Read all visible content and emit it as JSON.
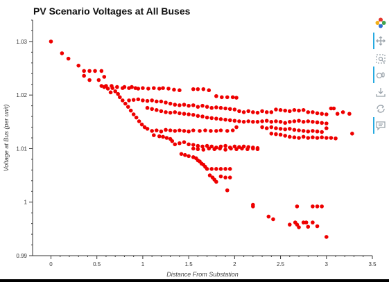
{
  "chart_data": {
    "type": "scatter",
    "title": "PV Scenario Voltages at All Buses",
    "xlabel": "Distance From Substation",
    "ylabel": "Voltage at Bus (per unit)",
    "xlim": [
      -0.2,
      3.5
    ],
    "ylim": [
      0.99,
      1.034
    ],
    "x_ticks": [
      "0",
      "0.5",
      "1",
      "1.5",
      "2",
      "2.5",
      "3",
      "3.5"
    ],
    "y_ticks": [
      "0.99",
      "1",
      "1.01",
      "1.02",
      "1.03"
    ],
    "marker_color": "#ee0000",
    "grid": false,
    "points": [
      [
        0.0,
        1.03
      ],
      [
        0.12,
        1.0278
      ],
      [
        0.19,
        1.0268
      ],
      [
        0.3,
        1.0255
      ],
      [
        0.36,
        1.0236
      ],
      [
        0.36,
        1.0245
      ],
      [
        0.42,
        1.0228
      ],
      [
        0.42,
        1.0245
      ],
      [
        0.48,
        1.0245
      ],
      [
        0.55,
        1.0245
      ],
      [
        0.58,
        1.0234
      ],
      [
        0.52,
        1.0228
      ],
      [
        0.55,
        1.0217
      ],
      [
        0.58,
        1.0215
      ],
      [
        0.62,
        1.0212
      ],
      [
        0.65,
        1.0205
      ],
      [
        0.67,
        1.0213
      ],
      [
        0.7,
        1.0207
      ],
      [
        0.73,
        1.0202
      ],
      [
        0.75,
        1.0196
      ],
      [
        0.78,
        1.019
      ],
      [
        0.81,
        1.0184
      ],
      [
        0.84,
        1.0178
      ],
      [
        0.87,
        1.0171
      ],
      [
        0.9,
        1.0164
      ],
      [
        0.93,
        1.0158
      ],
      [
        0.96,
        1.0151
      ],
      [
        0.99,
        1.0145
      ],
      [
        1.02,
        1.014
      ],
      [
        1.05,
        1.0137
      ],
      [
        0.6,
        1.0217
      ],
      [
        0.66,
        1.0217
      ],
      [
        0.72,
        1.0215
      ],
      [
        0.78,
        1.0213
      ],
      [
        0.8,
        1.0215
      ],
      [
        0.85,
        1.0213
      ],
      [
        0.88,
        1.0215
      ],
      [
        0.92,
        1.0213
      ],
      [
        0.95,
        1.0212
      ],
      [
        1.0,
        1.0213
      ],
      [
        1.06,
        1.0212
      ],
      [
        1.12,
        1.0213
      ],
      [
        1.18,
        1.0212
      ],
      [
        1.22,
        1.0213
      ],
      [
        1.28,
        1.0212
      ],
      [
        1.34,
        1.021
      ],
      [
        1.4,
        1.0209
      ],
      [
        1.55,
        1.0211
      ],
      [
        1.6,
        1.0211
      ],
      [
        1.66,
        1.0211
      ],
      [
        1.72,
        1.0209
      ],
      [
        1.8,
        1.0198
      ],
      [
        1.86,
        1.0196
      ],
      [
        1.92,
        1.0196
      ],
      [
        1.98,
        1.0196
      ],
      [
        2.02,
        1.0195
      ],
      [
        0.85,
        1.019
      ],
      [
        0.9,
        1.0191
      ],
      [
        0.95,
        1.0192
      ],
      [
        1.0,
        1.019
      ],
      [
        1.05,
        1.0189
      ],
      [
        1.1,
        1.019
      ],
      [
        1.15,
        1.0188
      ],
      [
        1.2,
        1.0188
      ],
      [
        1.25,
        1.0186
      ],
      [
        1.3,
        1.0184
      ],
      [
        1.35,
        1.0182
      ],
      [
        1.4,
        1.0181
      ],
      [
        1.45,
        1.0182
      ],
      [
        1.5,
        1.018
      ],
      [
        1.55,
        1.0181
      ],
      [
        1.6,
        1.0178
      ],
      [
        1.65,
        1.018
      ],
      [
        1.7,
        1.0178
      ],
      [
        1.75,
        1.0176
      ],
      [
        1.8,
        1.0177
      ],
      [
        1.85,
        1.0176
      ],
      [
        1.9,
        1.0175
      ],
      [
        1.95,
        1.0174
      ],
      [
        2.0,
        1.0173
      ],
      [
        2.05,
        1.017
      ],
      [
        2.1,
        1.0168
      ],
      [
        2.15,
        1.017
      ],
      [
        2.2,
        1.0168
      ],
      [
        2.25,
        1.0167
      ],
      [
        2.3,
        1.017
      ],
      [
        2.35,
        1.0168
      ],
      [
        2.4,
        1.0168
      ],
      [
        2.45,
        1.0173
      ],
      [
        2.5,
        1.0172
      ],
      [
        2.55,
        1.0171
      ],
      [
        2.6,
        1.017
      ],
      [
        2.65,
        1.0172
      ],
      [
        2.7,
        1.0171
      ],
      [
        2.75,
        1.0172
      ],
      [
        2.8,
        1.0168
      ],
      [
        2.85,
        1.0168
      ],
      [
        2.9,
        1.0166
      ],
      [
        2.95,
        1.0165
      ],
      [
        3.0,
        1.0164
      ],
      [
        3.05,
        1.0175
      ],
      [
        3.08,
        1.0175
      ],
      [
        3.12,
        1.0165
      ],
      [
        3.18,
        1.0168
      ],
      [
        3.25,
        1.0165
      ],
      [
        1.05,
        1.0176
      ],
      [
        1.1,
        1.0174
      ],
      [
        1.15,
        1.0172
      ],
      [
        1.2,
        1.017
      ],
      [
        1.25,
        1.0168
      ],
      [
        1.3,
        1.0167
      ],
      [
        1.35,
        1.0168
      ],
      [
        1.4,
        1.0166
      ],
      [
        1.45,
        1.0165
      ],
      [
        1.5,
        1.0164
      ],
      [
        1.55,
        1.0163
      ],
      [
        1.6,
        1.0161
      ],
      [
        1.65,
        1.016
      ],
      [
        1.7,
        1.0158
      ],
      [
        1.75,
        1.0157
      ],
      [
        1.8,
        1.0156
      ],
      [
        1.85,
        1.0155
      ],
      [
        1.9,
        1.0154
      ],
      [
        1.95,
        1.0153
      ],
      [
        2.0,
        1.0152
      ],
      [
        2.05,
        1.0151
      ],
      [
        2.1,
        1.015
      ],
      [
        2.15,
        1.0151
      ],
      [
        2.2,
        1.015
      ],
      [
        2.25,
        1.015
      ],
      [
        2.3,
        1.0151
      ],
      [
        2.35,
        1.0152
      ],
      [
        2.4,
        1.015
      ],
      [
        2.45,
        1.0151
      ],
      [
        2.5,
        1.015
      ],
      [
        2.55,
        1.0148
      ],
      [
        2.6,
        1.015
      ],
      [
        2.65,
        1.0151
      ],
      [
        2.7,
        1.0152
      ],
      [
        2.75,
        1.015
      ],
      [
        2.8,
        1.0151
      ],
      [
        2.85,
        1.015
      ],
      [
        2.9,
        1.0149
      ],
      [
        2.95,
        1.0148
      ],
      [
        3.0,
        1.0147
      ],
      [
        2.3,
        1.014
      ],
      [
        2.35,
        1.0138
      ],
      [
        2.4,
        1.014
      ],
      [
        2.45,
        1.0138
      ],
      [
        2.5,
        1.0137
      ],
      [
        2.55,
        1.0136
      ],
      [
        2.6,
        1.0137
      ],
      [
        2.65,
        1.0135
      ],
      [
        2.7,
        1.0134
      ],
      [
        2.75,
        1.0133
      ],
      [
        2.8,
        1.0132
      ],
      [
        2.85,
        1.0133
      ],
      [
        2.9,
        1.0132
      ],
      [
        2.95,
        1.0131
      ],
      [
        3.0,
        1.0138
      ],
      [
        2.4,
        1.0128
      ],
      [
        2.45,
        1.0127
      ],
      [
        2.5,
        1.0126
      ],
      [
        2.55,
        1.0124
      ],
      [
        2.6,
        1.0122
      ],
      [
        2.65,
        1.0121
      ],
      [
        2.7,
        1.012
      ],
      [
        2.75,
        1.0122
      ],
      [
        2.8,
        1.012
      ],
      [
        2.85,
        1.0121
      ],
      [
        2.9,
        1.012
      ],
      [
        2.95,
        1.0121
      ],
      [
        3.0,
        1.012
      ],
      [
        3.05,
        1.012
      ],
      [
        3.1,
        1.0119
      ],
      [
        3.28,
        1.0128
      ],
      [
        1.1,
        1.0133
      ],
      [
        1.15,
        1.0134
      ],
      [
        1.2,
        1.0132
      ],
      [
        1.25,
        1.0135
      ],
      [
        1.3,
        1.0134
      ],
      [
        1.35,
        1.0133
      ],
      [
        1.4,
        1.0134
      ],
      [
        1.45,
        1.0133
      ],
      [
        1.5,
        1.0132
      ],
      [
        1.55,
        1.0134
      ],
      [
        1.62,
        1.0133
      ],
      [
        1.68,
        1.0134
      ],
      [
        1.74,
        1.0133
      ],
      [
        1.8,
        1.0133
      ],
      [
        1.85,
        1.0134
      ],
      [
        1.92,
        1.0133
      ],
      [
        1.98,
        1.0134
      ],
      [
        2.02,
        1.014
      ],
      [
        1.12,
        1.0125
      ],
      [
        1.18,
        1.0123
      ],
      [
        1.22,
        1.0122
      ],
      [
        1.26,
        1.012
      ],
      [
        1.3,
        1.0118
      ],
      [
        1.32,
        1.0114
      ],
      [
        1.35,
        1.0108
      ],
      [
        1.4,
        1.011
      ],
      [
        1.45,
        1.0112
      ],
      [
        1.5,
        1.0108
      ],
      [
        1.55,
        1.0107
      ],
      [
        1.6,
        1.0105
      ],
      [
        1.65,
        1.0104
      ],
      [
        1.7,
        1.0105
      ],
      [
        1.75,
        1.0104
      ],
      [
        1.8,
        1.0102
      ],
      [
        1.85,
        1.0104
      ],
      [
        1.9,
        1.0105
      ],
      [
        1.95,
        1.0102
      ],
      [
        2.0,
        1.0104
      ],
      [
        2.05,
        1.0103
      ],
      [
        2.1,
        1.0104
      ],
      [
        2.15,
        1.0103
      ],
      [
        2.2,
        1.0102
      ],
      [
        2.25,
        1.0101
      ],
      [
        1.55,
        1.01
      ],
      [
        1.6,
        1.0099
      ],
      [
        1.66,
        1.0098
      ],
      [
        1.72,
        1.01
      ],
      [
        1.78,
        1.0099
      ],
      [
        1.84,
        1.01
      ],
      [
        1.9,
        1.0098
      ],
      [
        1.96,
        1.01
      ],
      [
        2.02,
        1.0099
      ],
      [
        2.08,
        1.01
      ],
      [
        2.14,
        1.0099
      ],
      [
        2.2,
        1.01
      ],
      [
        2.25,
        1.0099
      ],
      [
        1.42,
        1.009
      ],
      [
        1.46,
        1.0088
      ],
      [
        1.5,
        1.0086
      ],
      [
        1.55,
        1.0084
      ],
      [
        1.58,
        1.0082
      ],
      [
        1.6,
        1.0078
      ],
      [
        1.62,
        1.0076
      ],
      [
        1.64,
        1.0072
      ],
      [
        1.66,
        1.007
      ],
      [
        1.68,
        1.0066
      ],
      [
        1.7,
        1.0062
      ],
      [
        1.75,
        1.0062
      ],
      [
        1.8,
        1.0062
      ],
      [
        1.85,
        1.0062
      ],
      [
        1.9,
        1.0062
      ],
      [
        1.95,
        1.0062
      ],
      [
        1.73,
        1.005
      ],
      [
        1.76,
        1.0046
      ],
      [
        1.78,
        1.0042
      ],
      [
        1.8,
        1.0038
      ],
      [
        1.85,
        1.0048
      ],
      [
        1.9,
        1.0046
      ],
      [
        1.95,
        1.0046
      ],
      [
        1.92,
        1.0022
      ],
      [
        2.2,
        0.9992
      ],
      [
        2.2,
        0.9995
      ],
      [
        2.37,
        0.9973
      ],
      [
        2.42,
        0.9968
      ],
      [
        2.6,
        0.9958
      ],
      [
        2.66,
        0.9962
      ],
      [
        2.68,
        0.9958
      ],
      [
        2.7,
        0.9953
      ],
      [
        2.75,
        0.9962
      ],
      [
        2.78,
        0.9962
      ],
      [
        2.8,
        0.9954
      ],
      [
        2.85,
        0.9962
      ],
      [
        2.9,
        0.9955
      ],
      [
        2.68,
        0.9992
      ],
      [
        2.85,
        0.9992
      ],
      [
        2.9,
        0.9992
      ],
      [
        2.95,
        0.9992
      ],
      [
        3.0,
        0.9935
      ]
    ]
  },
  "toolbar": {
    "tools": [
      {
        "name": "bokeh-logo-icon"
      },
      {
        "name": "pan-icon"
      },
      {
        "name": "box-zoom-icon"
      },
      {
        "name": "wheel-zoom-icon"
      },
      {
        "name": "save-icon"
      },
      {
        "name": "reset-icon"
      },
      {
        "name": "hover-icon"
      }
    ]
  }
}
